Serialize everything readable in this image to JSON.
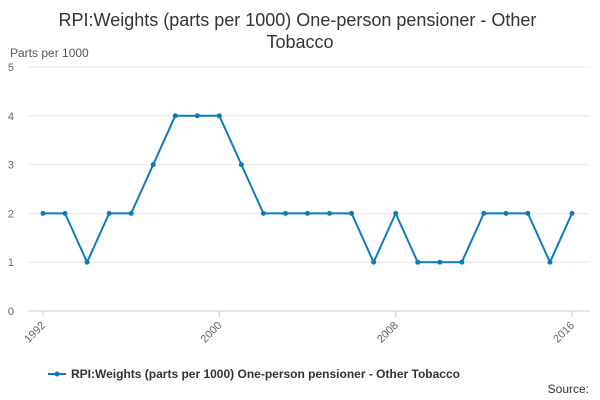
{
  "chart_data": {
    "type": "line",
    "title": "RPI:Weights (parts per 1000) One-person pensioner - Other Tobacco",
    "ylabel": "Parts per 1000",
    "xlabel": "",
    "x": [
      1992,
      1993,
      1994,
      1995,
      1996,
      1997,
      1998,
      1999,
      2000,
      2001,
      2002,
      2003,
      2004,
      2005,
      2006,
      2007,
      2008,
      2009,
      2010,
      2011,
      2012,
      2013,
      2014,
      2015,
      2016
    ],
    "xlim": [
      1992,
      2016
    ],
    "x_ticks": [
      "1992",
      "2000",
      "2008",
      "2016"
    ],
    "ylim": [
      0,
      5
    ],
    "y_ticks": [
      "0",
      "1",
      "2",
      "3",
      "4",
      "5"
    ],
    "grid": "horizontal",
    "legend_position": "bottom",
    "series": [
      {
        "name": "RPI:Weights (parts per 1000) One-person pensioner - Other Tobacco",
        "color": "#0a7bbd",
        "values": [
          2,
          2,
          1,
          2,
          2,
          3,
          4,
          4,
          4,
          3,
          2,
          2,
          2,
          2,
          2,
          1,
          2,
          1,
          1,
          1,
          2,
          2,
          2,
          1,
          2
        ]
      }
    ]
  },
  "footer": {
    "source_label": "Source:"
  }
}
